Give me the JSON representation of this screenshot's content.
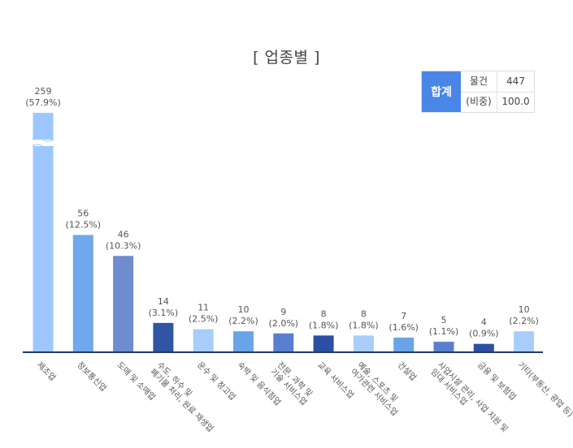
{
  "title": "[ 업종별 ]",
  "total": {
    "label": "합계",
    "row1_label": "물건",
    "row1_value": "447",
    "row2_label": "(비중)",
    "row2_value": "100.0"
  },
  "chart_data": {
    "type": "bar",
    "title": "[ 업종별 ]",
    "categories": [
      [
        "제조업"
      ],
      [
        "정보통신업"
      ],
      [
        "도매 및 소매업"
      ],
      [
        "수도, 하수 및",
        "폐기물 처리, 원료 재생업"
      ],
      [
        "운수 및 창고업"
      ],
      [
        "숙박 및 음식점업"
      ],
      [
        "전문, 과학 및",
        "기술 서비스업"
      ],
      [
        "교육 서비스업"
      ],
      [
        "예술, 스포츠 및",
        "여가관련 서비스업"
      ],
      [
        "건설업"
      ],
      [
        "사업시설 관리, 사업 지원 및",
        "임대 서비스업"
      ],
      [
        "금융 및 보험업"
      ],
      [
        "기타(부동산, 광업 등)"
      ]
    ],
    "values": [
      259,
      56,
      46,
      14,
      11,
      10,
      9,
      8,
      8,
      7,
      5,
      4,
      10
    ],
    "value_labels": [
      "259",
      "56",
      "46",
      "14",
      "11",
      "10",
      "9",
      "8",
      "8",
      "7",
      "5",
      "4",
      "10"
    ],
    "percent_labels": [
      "(57.9%)",
      "(12.5%)",
      "(10.3%)",
      "(3.1%)",
      "(2.5%)",
      "(2.2%)",
      "(2.0%)",
      "(1.8%)",
      "(1.8%)",
      "(1.6%)",
      "(1.1%)",
      "(0.9%)",
      "(2.2%)"
    ],
    "colors": [
      "#9ec7ff",
      "#6fa8ec",
      "#6e8ccf",
      "#2f55a4",
      "#a9cdfa",
      "#6aa4e8",
      "#5b7fd0",
      "#2c4fa3",
      "#a9cdfa",
      "#6aa4e8",
      "#5b7fd0",
      "#2c4fa3",
      "#a9cdfa"
    ],
    "axis_break": true,
    "grid": false,
    "legend": "none",
    "axis_color": "#1f3a6e"
  }
}
